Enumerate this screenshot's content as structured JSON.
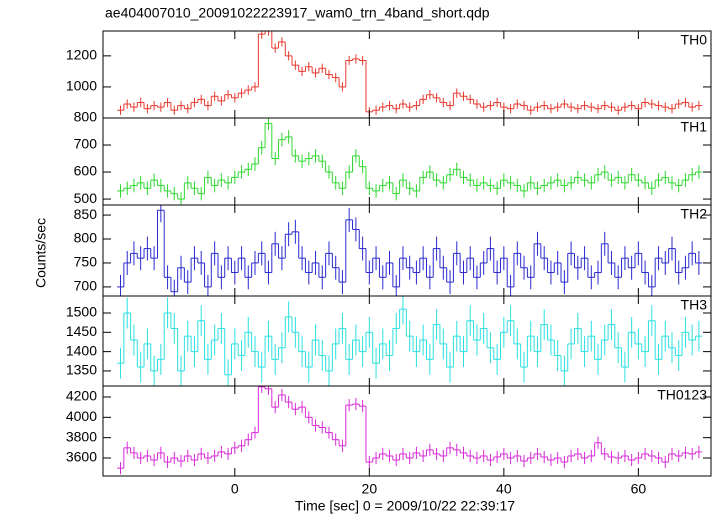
{
  "chart_data": {
    "type": "step",
    "title": "ae404007010_20091022223917_wam0_trn_4band_short.qdp",
    "xlabel": "Time [sec] 0 = 2009/10/22 22:39:17",
    "ylabel": "Counts/sec",
    "xlim": [
      -19.6,
      70.8
    ],
    "xticks": [
      0,
      20,
      40,
      60
    ],
    "x": [
      -17,
      -16,
      -15,
      -14,
      -13,
      -12,
      -11,
      -10,
      -9,
      -8,
      -7,
      -6,
      -5,
      -4,
      -3,
      -2,
      -1,
      0,
      1,
      2,
      3,
      4,
      5,
      6,
      7,
      8,
      9,
      10,
      11,
      12,
      13,
      14,
      15,
      16,
      17,
      18,
      19,
      20,
      21,
      22,
      23,
      24,
      25,
      26,
      27,
      28,
      29,
      30,
      31,
      32,
      33,
      34,
      35,
      36,
      37,
      38,
      39,
      40,
      41,
      42,
      43,
      44,
      45,
      46,
      47,
      48,
      49,
      50,
      51,
      52,
      53,
      54,
      55,
      56,
      57,
      58,
      59,
      60,
      61,
      62,
      63,
      64,
      65,
      66,
      67,
      68,
      69
    ],
    "panels": [
      {
        "name": "TH0",
        "color": "#e8392f",
        "error": 30,
        "ylim": [
          800,
          1360
        ],
        "yticks": [
          800,
          1000,
          1200
        ],
        "values": [
          850,
          890,
          870,
          900,
          860,
          880,
          870,
          900,
          850,
          880,
          860,
          900,
          920,
          880,
          940,
          910,
          950,
          930,
          960,
          980,
          1000,
          1340,
          1360,
          1250,
          1290,
          1200,
          1140,
          1100,
          1130,
          1090,
          1120,
          1080,
          1060,
          1000,
          1170,
          1180,
          1170,
          840,
          850,
          870,
          880,
          860,
          890,
          870,
          880,
          920,
          950,
          930,
          900,
          880,
          960,
          940,
          920,
          890,
          870,
          880,
          900,
          870,
          860,
          890,
          880,
          850,
          870,
          880,
          860,
          870,
          890,
          870,
          860,
          880,
          870,
          860,
          880,
          870,
          850,
          870,
          880,
          860,
          900,
          890,
          880,
          870,
          860,
          890,
          900,
          870,
          880
        ]
      },
      {
        "name": "TH1",
        "color": "#2fd82f",
        "error": 25,
        "ylim": [
          478,
          800
        ],
        "yticks": [
          500,
          600,
          700
        ],
        "values": [
          530,
          540,
          550,
          560,
          540,
          570,
          550,
          530,
          520,
          500,
          560,
          540,
          520,
          580,
          550,
          570,
          560,
          580,
          600,
          610,
          630,
          690,
          780,
          650,
          720,
          730,
          660,
          640,
          650,
          660,
          640,
          600,
          560,
          540,
          600,
          660,
          620,
          540,
          530,
          550,
          560,
          520,
          570,
          540,
          530,
          580,
          600,
          570,
          560,
          590,
          610,
          580,
          570,
          550,
          560,
          550,
          540,
          570,
          560,
          550,
          530,
          560,
          540,
          550,
          560,
          570,
          550,
          560,
          580,
          570,
          560,
          590,
          600,
          570,
          580,
          560,
          590,
          570,
          560,
          540,
          570,
          580,
          560,
          550,
          570,
          590,
          600
        ]
      },
      {
        "name": "TH2",
        "color": "#2a2ad0",
        "error": 25,
        "ylim": [
          681,
          871
        ],
        "yticks": [
          700,
          750,
          800,
          850
        ],
        "values": [
          700,
          750,
          770,
          760,
          780,
          760,
          860,
          720,
          690,
          740,
          710,
          760,
          750,
          700,
          770,
          720,
          760,
          730,
          760,
          720,
          750,
          770,
          730,
          790,
          760,
          810,
          815,
          760,
          730,
          750,
          720,
          770,
          740,
          710,
          840,
          820,
          780,
          730,
          760,
          720,
          750,
          700,
          760,
          740,
          730,
          760,
          720,
          780,
          740,
          710,
          770,
          730,
          760,
          720,
          750,
          780,
          730,
          760,
          700,
          770,
          740,
          720,
          790,
          760,
          730,
          750,
          710,
          770,
          740,
          760,
          720,
          730,
          790,
          750,
          720,
          760,
          740,
          770,
          730,
          700,
          760,
          750,
          780,
          730,
          740,
          770,
          750
        ]
      },
      {
        "name": "TH3",
        "color": "#2ae0e0",
        "error": 40,
        "ylim": [
          1311,
          1544
        ],
        "yticks": [
          1350,
          1400,
          1450,
          1500
        ],
        "values": [
          1370,
          1500,
          1430,
          1360,
          1420,
          1350,
          1380,
          1500,
          1460,
          1350,
          1440,
          1400,
          1480,
          1380,
          1430,
          1460,
          1340,
          1420,
          1390,
          1450,
          1400,
          1360,
          1440,
          1380,
          1410,
          1490,
          1450,
          1400,
          1360,
          1430,
          1390,
          1350,
          1420,
          1460,
          1380,
          1430,
          1400,
          1450,
          1370,
          1420,
          1390,
          1460,
          1510,
          1440,
          1400,
          1430,
          1380,
          1470,
          1420,
          1360,
          1440,
          1400,
          1480,
          1430,
          1460,
          1410,
          1380,
          1450,
          1480,
          1420,
          1360,
          1440,
          1400,
          1470,
          1430,
          1390,
          1350,
          1420,
          1460,
          1400,
          1440,
          1380,
          1430,
          1470,
          1410,
          1360,
          1450,
          1420,
          1400,
          1480,
          1380,
          1440,
          1410,
          1390,
          1450,
          1430,
          1440
        ]
      },
      {
        "name": "TH0123",
        "color": "#d82ad8",
        "error": 60,
        "ylim": [
          3423,
          4308
        ],
        "yticks": [
          3600,
          3800,
          4000,
          4200
        ],
        "values": [
          3500,
          3700,
          3650,
          3600,
          3620,
          3580,
          3650,
          3560,
          3600,
          3570,
          3620,
          3580,
          3640,
          3600,
          3620,
          3660,
          3640,
          3700,
          3720,
          3780,
          3850,
          4300,
          4280,
          4100,
          4220,
          4150,
          4080,
          4100,
          4000,
          3920,
          3900,
          3850,
          3780,
          3720,
          4120,
          4130,
          4110,
          3560,
          3600,
          3640,
          3620,
          3580,
          3640,
          3600,
          3650,
          3620,
          3680,
          3640,
          3620,
          3700,
          3680,
          3650,
          3620,
          3600,
          3620,
          3580,
          3610,
          3640,
          3600,
          3620,
          3570,
          3600,
          3640,
          3610,
          3580,
          3600,
          3560,
          3620,
          3640,
          3600,
          3620,
          3750,
          3640,
          3610,
          3600,
          3620,
          3580,
          3600,
          3640,
          3620,
          3600,
          3560,
          3640,
          3620,
          3650,
          3640,
          3660
        ]
      }
    ]
  }
}
